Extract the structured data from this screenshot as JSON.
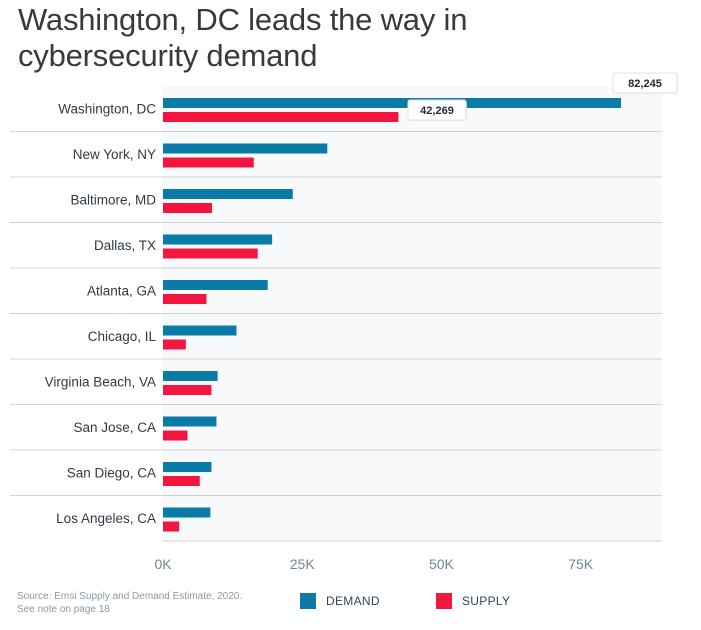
{
  "title": {
    "line1": "Washington, DC leads the way in",
    "line2": "cybersecurity demand"
  },
  "colors": {
    "demand": "#0a7aa6",
    "supply": "#f2163e",
    "plot_background": "#f8f9fb",
    "gridline": "#cfd3d6",
    "title_text": "#3a3a3a",
    "axis_text": "#6f8793",
    "category_text": "#2f3b45",
    "footer_text": "#8a9aa4"
  },
  "chart_data": {
    "type": "bar",
    "orientation": "horizontal",
    "title": "Washington, DC leads the way in cybersecurity demand",
    "xlabel": "",
    "ylabel": "",
    "xlim": [
      0,
      90000
    ],
    "x_ticks": [
      0,
      25000,
      50000,
      75000
    ],
    "x_tick_labels": [
      "0K",
      "25K",
      "50K",
      "75K"
    ],
    "categories": [
      "Washington, DC",
      "New York, NY",
      "Baltimore, MD",
      "Dallas, TX",
      "Atlanta, GA",
      "Chicago, IL",
      "Virginia Beach, VA",
      "San Jose, CA",
      "San Diego, CA",
      "Los Angeles, CA"
    ],
    "series": [
      {
        "name": "DEMAND",
        "values": [
          82245,
          29500,
          23300,
          19600,
          18800,
          13200,
          9800,
          9600,
          8700,
          8500
        ]
      },
      {
        "name": "SUPPLY",
        "values": [
          42269,
          16300,
          8800,
          17000,
          7800,
          4100,
          8700,
          4400,
          6600,
          2900
        ]
      }
    ],
    "data_labels": [
      {
        "series": "DEMAND",
        "category": "Washington, DC",
        "text": "82,245"
      },
      {
        "series": "SUPPLY",
        "category": "Washington, DC",
        "text": "42,269"
      }
    ],
    "legend": [
      "DEMAND",
      "SUPPLY"
    ],
    "legend_position": "bottom",
    "grid": "horizontal separators between categories"
  },
  "footer": {
    "source_line1": "Source: Emsi Supply and Demand Estimate, 2020.",
    "source_line2": "See note on page 18"
  }
}
